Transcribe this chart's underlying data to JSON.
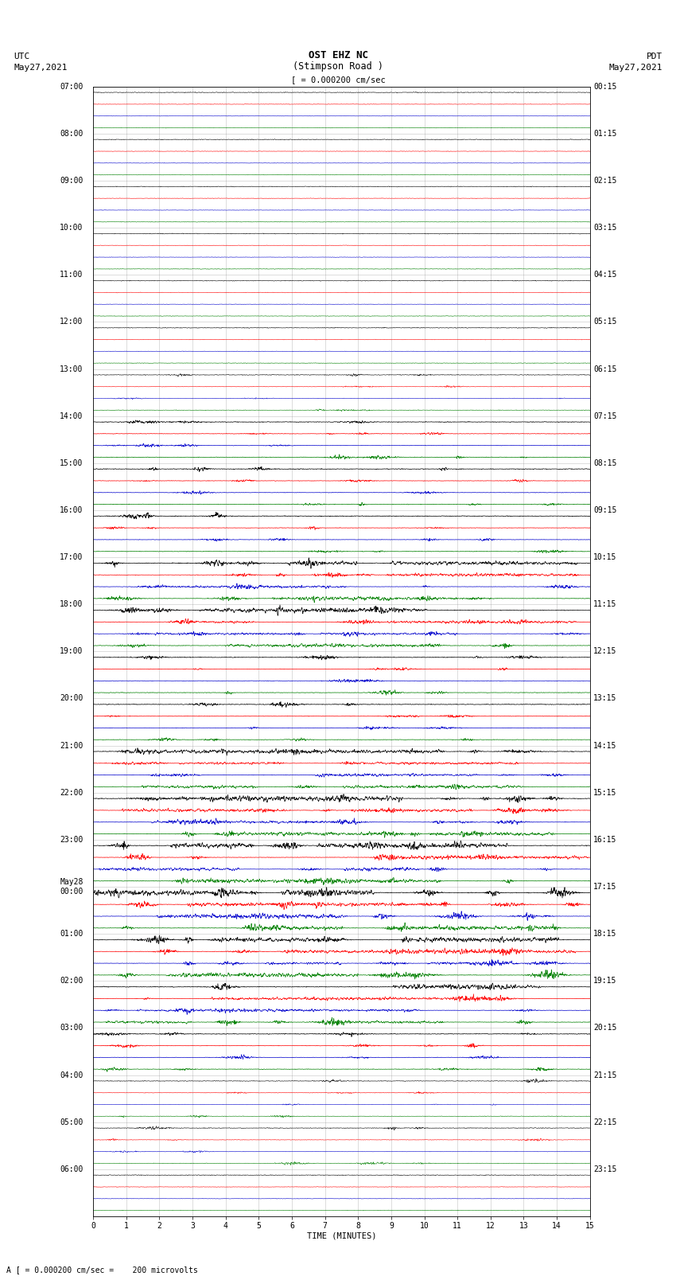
{
  "title_line1": "OST EHZ NC",
  "title_line2": "(Stimpson Road )",
  "title_line3": "[ = 0.000200 cm/sec",
  "utc_label": "UTC",
  "utc_date": "May27,2021",
  "pdt_label": "PDT",
  "pdt_date": "May27,2021",
  "xlabel": "TIME (MINUTES)",
  "bottom_note": "A [ = 0.000200 cm/sec =    200 microvolts",
  "left_times": [
    "07:00",
    "08:00",
    "09:00",
    "10:00",
    "11:00",
    "12:00",
    "13:00",
    "14:00",
    "15:00",
    "16:00",
    "17:00",
    "18:00",
    "19:00",
    "20:00",
    "21:00",
    "22:00",
    "23:00",
    "May28\n00:00",
    "01:00",
    "02:00",
    "03:00",
    "04:00",
    "05:00",
    "06:00"
  ],
  "right_times": [
    "00:15",
    "01:15",
    "02:15",
    "03:15",
    "04:15",
    "05:15",
    "06:15",
    "07:15",
    "08:15",
    "09:15",
    "10:15",
    "11:15",
    "12:15",
    "13:15",
    "14:15",
    "15:15",
    "16:15",
    "17:15",
    "18:15",
    "19:15",
    "20:15",
    "21:15",
    "22:15",
    "23:15"
  ],
  "n_hours": 24,
  "xmin": 0,
  "xmax": 15,
  "bg_color": "#ffffff",
  "colors": [
    "#000000",
    "#ff0000",
    "#0000cc",
    "#008000"
  ],
  "grid_color": "#888888",
  "title_fontsize": 9,
  "label_fontsize": 8,
  "tick_fontsize": 7,
  "activity_levels": [
    1,
    1,
    1,
    1,
    1,
    1,
    2,
    3,
    3,
    3,
    4,
    4,
    3,
    3,
    4,
    5,
    5,
    6,
    5,
    4,
    3,
    2,
    2,
    1
  ]
}
